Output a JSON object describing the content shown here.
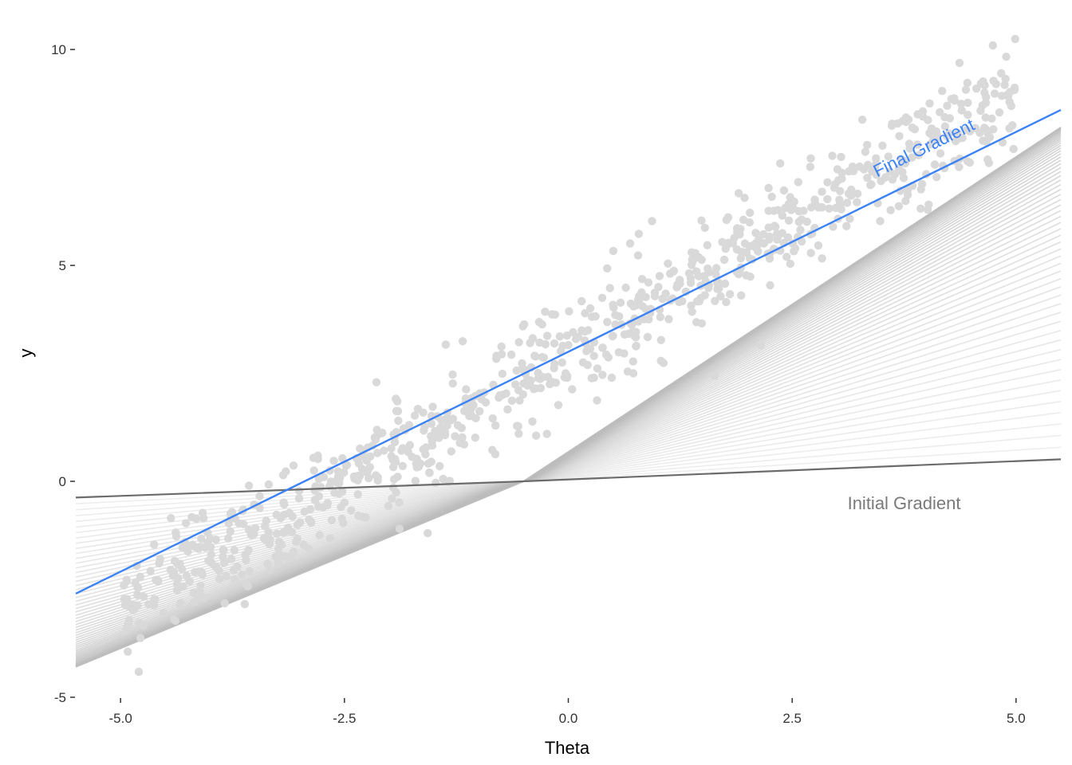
{
  "chart_data": {
    "type": "scatter",
    "title": "",
    "xlabel": "Theta",
    "ylabel": "y",
    "xlim": [
      -5.5,
      5.5
    ],
    "ylim": [
      -5,
      10.5
    ],
    "x_ticks": [
      -5.0,
      -2.5,
      0.0,
      2.5,
      5.0
    ],
    "x_tick_labels": [
      "-5.0",
      "-2.5",
      "0.0",
      "2.5",
      "5.0"
    ],
    "y_ticks": [
      -5,
      0,
      5,
      10
    ],
    "y_tick_labels": [
      "-5",
      "0",
      "5",
      "10"
    ],
    "grid": false,
    "colors": {
      "points": "#d9d9d9",
      "iteration_lines": "#bdbdbd",
      "initial_line": "#6b6b6b",
      "final_line": "#3b82f6",
      "initial_label": "#7a7a7a",
      "final_label": "#3b82f6"
    },
    "initial_gradient": {
      "intercept": 0.0,
      "slope": 0.0,
      "pivot": -0.5,
      "left_slope": 0.075,
      "right_slope": 0.085
    },
    "final_gradient": {
      "intercept": 3.0,
      "slope": 1.0
    },
    "iterations": 60,
    "annotations": [
      {
        "text": "Final Gradient",
        "x": 4.0,
        "y": 7.6,
        "color": "#3b82f6"
      },
      {
        "text": "Initial Gradient",
        "x": 3.75,
        "y": -0.5,
        "color": "#7a7a7a"
      }
    ],
    "scatter_model": {
      "n": 900,
      "intercept": 3.0,
      "slope": 1.2,
      "noise_sd": 1.2,
      "x_range": [
        -5.0,
        5.0
      ]
    }
  }
}
